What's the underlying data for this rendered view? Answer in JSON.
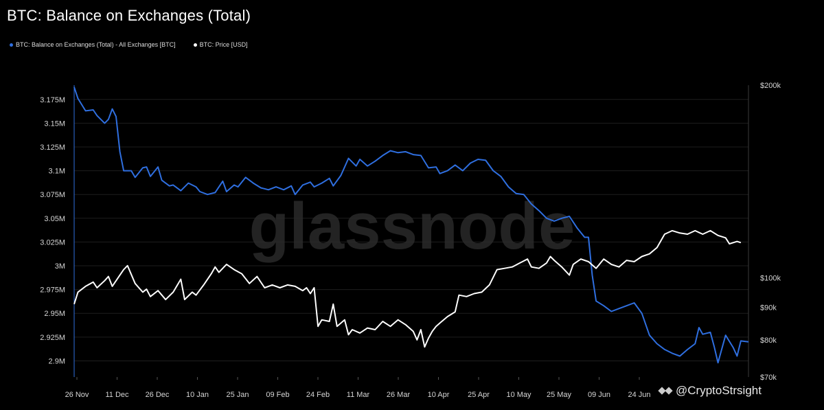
{
  "chart_data": {
    "type": "line",
    "title": "BTC: Balance on Exchanges (Total)",
    "watermark": "glassnode",
    "source_credit": "@CryptoStrsight",
    "x_tick_labels": [
      "26 Nov",
      "11 Dec",
      "26 Dec",
      "10 Jan",
      "25 Jan",
      "09 Feb",
      "24 Feb",
      "11 Mar",
      "26 Mar",
      "10 Apr",
      "25 Apr",
      "10 May",
      "25 May",
      "09 Jun",
      "24 Jun"
    ],
    "left_axis": {
      "ticks": [
        2.9,
        2.925,
        2.95,
        2.975,
        3.0,
        3.025,
        3.05,
        3.075,
        3.1,
        3.125,
        3.15,
        3.175
      ],
      "tick_labels": [
        "2.9M",
        "2.925M",
        "2.95M",
        "2.975M",
        "3M",
        "3.025M",
        "3.05M",
        "3.075M",
        "3.1M",
        "3.125M",
        "3.15M",
        "3.175M"
      ],
      "range": [
        2.883,
        3.19
      ]
    },
    "right_axis": {
      "scale": "log",
      "ticks": [
        70000,
        80000,
        90000,
        100000,
        200000
      ],
      "tick_labels": [
        "$70k",
        "$80k",
        "$90k",
        "$100k",
        "$200k"
      ],
      "range": [
        70000,
        200000
      ]
    },
    "series": [
      {
        "name": "BTC: Balance on Exchanges (Total) - All Exchanges [BTC]",
        "axis": "left",
        "color": "#2f6fe0",
        "points": [
          [
            0,
            3.188
          ],
          [
            1,
            3.176
          ],
          [
            3,
            3.163
          ],
          [
            5,
            3.164
          ],
          [
            6,
            3.158
          ],
          [
            8,
            3.15
          ],
          [
            9,
            3.154
          ],
          [
            10,
            3.165
          ],
          [
            11,
            3.157
          ],
          [
            12,
            3.12
          ],
          [
            13,
            3.1
          ],
          [
            15,
            3.1
          ],
          [
            16,
            3.093
          ],
          [
            18,
            3.103
          ],
          [
            19,
            3.104
          ],
          [
            20,
            3.094
          ],
          [
            22,
            3.104
          ],
          [
            23,
            3.09
          ],
          [
            25,
            3.084
          ],
          [
            26,
            3.085
          ],
          [
            28,
            3.079
          ],
          [
            30,
            3.087
          ],
          [
            32,
            3.083
          ],
          [
            33,
            3.078
          ],
          [
            35,
            3.075
          ],
          [
            37,
            3.077
          ],
          [
            39,
            3.089
          ],
          [
            40,
            3.078
          ],
          [
            42,
            3.085
          ],
          [
            43,
            3.083
          ],
          [
            45,
            3.093
          ],
          [
            47,
            3.087
          ],
          [
            49,
            3.082
          ],
          [
            51,
            3.08
          ],
          [
            53,
            3.083
          ],
          [
            55,
            3.08
          ],
          [
            57,
            3.084
          ],
          [
            58,
            3.075
          ],
          [
            60,
            3.085
          ],
          [
            62,
            3.088
          ],
          [
            63,
            3.083
          ],
          [
            65,
            3.087
          ],
          [
            67,
            3.092
          ],
          [
            68,
            3.084
          ],
          [
            70,
            3.095
          ],
          [
            72,
            3.113
          ],
          [
            74,
            3.105
          ],
          [
            75,
            3.112
          ],
          [
            77,
            3.105
          ],
          [
            79,
            3.11
          ],
          [
            81,
            3.116
          ],
          [
            83,
            3.121
          ],
          [
            85,
            3.119
          ],
          [
            87,
            3.12
          ],
          [
            89,
            3.117
          ],
          [
            91,
            3.116
          ],
          [
            93,
            3.103
          ],
          [
            95,
            3.104
          ],
          [
            96,
            3.097
          ],
          [
            98,
            3.1
          ],
          [
            100,
            3.106
          ],
          [
            102,
            3.1
          ],
          [
            104,
            3.108
          ],
          [
            106,
            3.112
          ],
          [
            108,
            3.111
          ],
          [
            110,
            3.1
          ],
          [
            112,
            3.094
          ],
          [
            114,
            3.083
          ],
          [
            116,
            3.076
          ],
          [
            118,
            3.075
          ],
          [
            120,
            3.065
          ],
          [
            122,
            3.058
          ],
          [
            124,
            3.05
          ],
          [
            126,
            3.047
          ],
          [
            128,
            3.05
          ],
          [
            130,
            3.052
          ],
          [
            132,
            3.04
          ],
          [
            134,
            3.03
          ],
          [
            135,
            3.03
          ],
          [
            136,
            2.99
          ],
          [
            137,
            2.963
          ],
          [
            139,
            2.958
          ],
          [
            141,
            2.952
          ],
          [
            143,
            2.955
          ],
          [
            145,
            2.958
          ],
          [
            147,
            2.961
          ],
          [
            149,
            2.95
          ],
          [
            151,
            2.927
          ],
          [
            153,
            2.918
          ],
          [
            155,
            2.912
          ],
          [
            157,
            2.908
          ],
          [
            159,
            2.905
          ],
          [
            161,
            2.912
          ],
          [
            163,
            2.918
          ],
          [
            164,
            2.935
          ],
          [
            165,
            2.928
          ],
          [
            167,
            2.93
          ],
          [
            168,
            2.915
          ],
          [
            169,
            2.898
          ],
          [
            171,
            2.927
          ],
          [
            173,
            2.914
          ],
          [
            174,
            2.905
          ],
          [
            175,
            2.921
          ],
          [
            177,
            2.92
          ]
        ]
      },
      {
        "name": "BTC: Price [USD]",
        "axis": "right",
        "color": "#ffffff",
        "points": [
          [
            0,
            91000
          ],
          [
            1,
            95000
          ],
          [
            3,
            97000
          ],
          [
            5,
            98500
          ],
          [
            6,
            96500
          ],
          [
            8,
            99000
          ],
          [
            9,
            100500
          ],
          [
            10,
            97000
          ],
          [
            12,
            101000
          ],
          [
            13,
            103000
          ],
          [
            14,
            104500
          ],
          [
            16,
            98000
          ],
          [
            18,
            95000
          ],
          [
            19,
            96000
          ],
          [
            20,
            93500
          ],
          [
            22,
            95500
          ],
          [
            24,
            92500
          ],
          [
            26,
            95000
          ],
          [
            28,
            99500
          ],
          [
            29,
            92500
          ],
          [
            31,
            95000
          ],
          [
            32,
            94000
          ],
          [
            34,
            97500
          ],
          [
            36,
            101500
          ],
          [
            37,
            104000
          ],
          [
            38,
            102000
          ],
          [
            40,
            105000
          ],
          [
            42,
            103000
          ],
          [
            44,
            101500
          ],
          [
            46,
            98000
          ],
          [
            48,
            100500
          ],
          [
            50,
            96500
          ],
          [
            52,
            97500
          ],
          [
            54,
            96500
          ],
          [
            56,
            97500
          ],
          [
            58,
            97000
          ],
          [
            60,
            95500
          ],
          [
            61,
            96500
          ],
          [
            62,
            94500
          ],
          [
            63,
            96500
          ],
          [
            64,
            84000
          ],
          [
            65,
            86000
          ],
          [
            67,
            85500
          ],
          [
            68,
            91000
          ],
          [
            69,
            84000
          ],
          [
            71,
            86000
          ],
          [
            72,
            81500
          ],
          [
            73,
            83000
          ],
          [
            75,
            82000
          ],
          [
            77,
            83500
          ],
          [
            79,
            83000
          ],
          [
            81,
            85500
          ],
          [
            83,
            84000
          ],
          [
            85,
            86000
          ],
          [
            87,
            84500
          ],
          [
            89,
            82500
          ],
          [
            90,
            80000
          ],
          [
            91,
            83000
          ],
          [
            92,
            78000
          ],
          [
            93,
            80500
          ],
          [
            94,
            82500
          ],
          [
            95,
            84000
          ],
          [
            96,
            85000
          ],
          [
            98,
            87000
          ],
          [
            100,
            88500
          ],
          [
            101,
            94000
          ],
          [
            103,
            93500
          ],
          [
            105,
            94500
          ],
          [
            107,
            95000
          ],
          [
            109,
            97500
          ],
          [
            111,
            103000
          ],
          [
            113,
            103500
          ],
          [
            115,
            104000
          ],
          [
            117,
            105500
          ],
          [
            119,
            107000
          ],
          [
            120,
            104000
          ],
          [
            122,
            103500
          ],
          [
            124,
            105500
          ],
          [
            125,
            108000
          ],
          [
            126,
            106500
          ],
          [
            128,
            104000
          ],
          [
            130,
            101000
          ],
          [
            131,
            105000
          ],
          [
            133,
            107000
          ],
          [
            135,
            106000
          ],
          [
            137,
            103500
          ],
          [
            139,
            107000
          ],
          [
            141,
            105000
          ],
          [
            143,
            104000
          ],
          [
            145,
            106500
          ],
          [
            147,
            106000
          ],
          [
            149,
            108000
          ],
          [
            151,
            109000
          ],
          [
            153,
            111500
          ],
          [
            155,
            117000
          ],
          [
            157,
            118500
          ],
          [
            159,
            117500
          ],
          [
            161,
            117000
          ],
          [
            163,
            118500
          ],
          [
            165,
            117000
          ],
          [
            167,
            118500
          ],
          [
            169,
            116500
          ],
          [
            171,
            115500
          ],
          [
            172,
            113000
          ],
          [
            174,
            114000
          ],
          [
            175,
            113500
          ]
        ]
      }
    ],
    "x_range": [
      0,
      177
    ],
    "grid": true,
    "legend_position": "top-left"
  }
}
